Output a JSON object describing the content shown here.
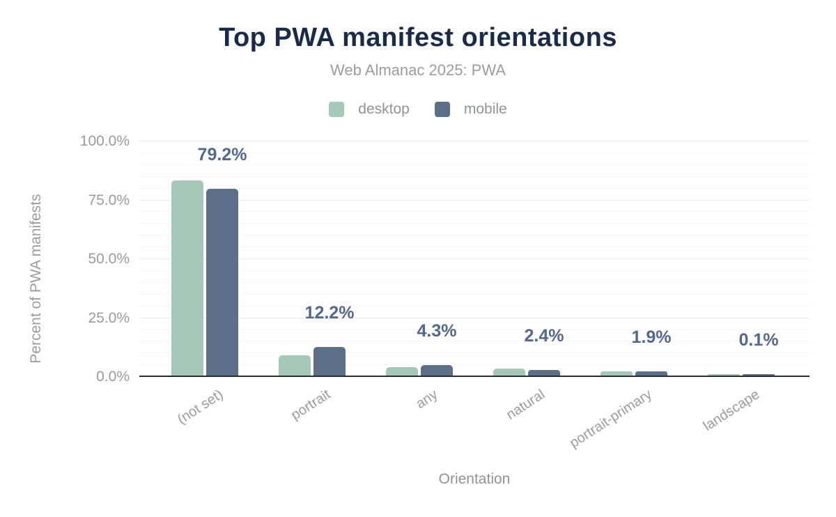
{
  "header": {
    "title": "Top PWA manifest orientations",
    "subtitle": "Web Almanac 2025: PWA"
  },
  "chart_data": {
    "type": "bar",
    "title": "Top PWA manifest orientations",
    "subtitle": "Web Almanac 2025: PWA",
    "xlabel": "Orientation",
    "ylabel": "Percent of PWA manifests",
    "categories": [
      "(not set)",
      "portrait",
      "any",
      "natural",
      "portrait-primary",
      "landscape"
    ],
    "series": [
      {
        "name": "desktop",
        "color": "#a6c8b8",
        "values": [
          82.9,
          8.5,
          3.6,
          2.9,
          1.7,
          0.2
        ]
      },
      {
        "name": "mobile",
        "color": "#5d6e89",
        "values": [
          79.2,
          12.2,
          4.3,
          2.4,
          1.9,
          0.1
        ]
      }
    ],
    "data_labels": [
      "79.2%",
      "12.2%",
      "4.3%",
      "2.4%",
      "1.9%",
      "0.1%"
    ],
    "data_label_series": "mobile",
    "y_ticks": [
      "100.0%",
      "75.0%",
      "50.0%",
      "25.0%",
      "0.0%"
    ],
    "ylim": [
      0,
      100
    ],
    "grid": {
      "major_step": 25,
      "minor_step": 5,
      "major_color": "#ececec",
      "minor_color": "#f7f7f7"
    },
    "legend_position": "top"
  },
  "colors": {
    "title": "#1a2b49",
    "subtitle_gray": "#999da1",
    "axis_text_gray": "#9b9b9b",
    "value_label": "#53688e",
    "axis_line": "#2b2b2b",
    "background": "#ffffff"
  }
}
